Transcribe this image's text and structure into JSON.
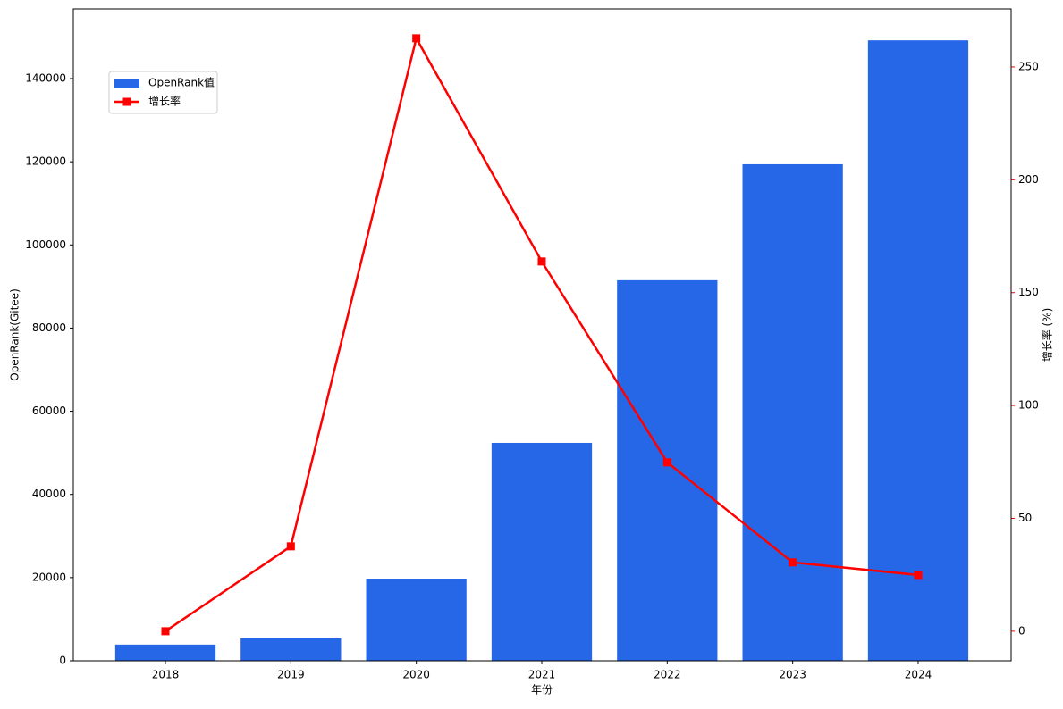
{
  "chart_data": {
    "type": "bar",
    "x_label": "年份",
    "y_label": "OpenRank(Gitee)",
    "y2_label": "增长率 (%)",
    "categories": [
      "2018",
      "2019",
      "2020",
      "2021",
      "2022",
      "2023",
      "2024"
    ],
    "series": [
      {
        "name": "OpenRank值",
        "type": "bar",
        "color": "#2667e8",
        "values": [
          3900,
          5400,
          19750,
          52400,
          91500,
          119400,
          149200
        ]
      },
      {
        "name": "增长率",
        "type": "line",
        "axis": "y2",
        "color": "#ff0000",
        "values": [
          0,
          37.6,
          262.7,
          163.8,
          74.8,
          30.5,
          24.9
        ]
      }
    ],
    "ylim": [
      0,
      156750
    ],
    "yticks": [
      0,
      20000,
      40000,
      60000,
      80000,
      100000,
      120000,
      140000
    ],
    "y2lim": [
      -13.1,
      275.7
    ],
    "y2ticks": [
      0,
      50,
      100,
      150,
      200,
      250
    ],
    "legend": "upper left"
  }
}
